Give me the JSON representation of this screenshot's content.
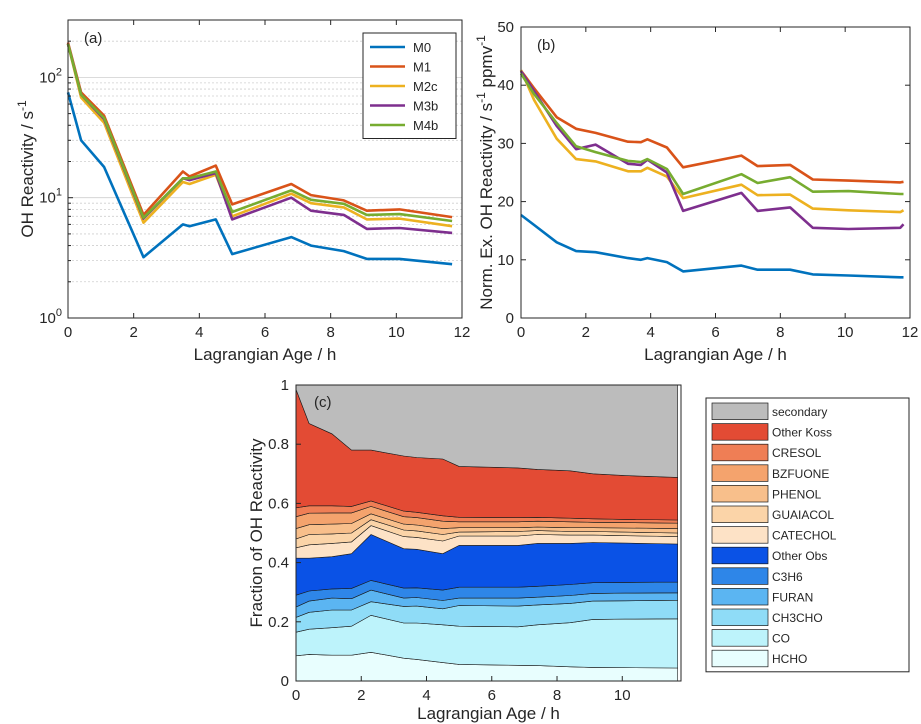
{
  "chart_data": [
    {
      "panel": "(a)",
      "type": "line",
      "xlabel": "Lagrangian Age / h",
      "ylabel": "OH Reactivity / s",
      "ylabel_sup": "-1",
      "xlim": [
        0,
        12
      ],
      "ylim": [
        1,
        300
      ],
      "yscale": "log",
      "grid": "minor-y",
      "legend_placement": "top-right",
      "x_ticks": [
        "0",
        "2",
        "4",
        "6",
        "8",
        "10",
        "12"
      ],
      "y_ticks": [
        {
          "base": "10",
          "exp": "0",
          "v": 1
        },
        {
          "base": "10",
          "exp": "1",
          "v": 10
        },
        {
          "base": "10",
          "exp": "2",
          "v": 100
        }
      ],
      "series": [
        {
          "name": "M0",
          "color": "#0072BD",
          "x": [
            0,
            0.4,
            1.1,
            2.3,
            3.5,
            3.7,
            4.5,
            5,
            6.8,
            7.4,
            8.4,
            9.1,
            10.1,
            11.7
          ],
          "y": [
            75,
            30,
            18,
            3.2,
            6.0,
            5.8,
            6.6,
            3.4,
            4.7,
            4.0,
            3.6,
            3.1,
            3.1,
            2.8
          ]
        },
        {
          "name": "M1",
          "color": "#D95319",
          "x": [
            0,
            0.4,
            1.1,
            2.3,
            3.5,
            3.7,
            4.5,
            5,
            6.8,
            7.4,
            8.4,
            9.1,
            10.1,
            11.7
          ],
          "y": [
            195,
            75,
            48,
            7.2,
            16.5,
            15,
            18.5,
            8.8,
            13,
            10.5,
            9.5,
            7.8,
            8.0,
            6.9
          ]
        },
        {
          "name": "M2c",
          "color": "#EDB120",
          "x": [
            0,
            0.4,
            1.1,
            2.3,
            3.5,
            3.7,
            4.5,
            5,
            6.8,
            7.4,
            8.4,
            9.1,
            10.1,
            11.7
          ],
          "y": [
            190,
            68,
            42,
            6.2,
            13.5,
            13,
            15.5,
            7.0,
            10.8,
            9.0,
            8.3,
            6.6,
            6.7,
            5.8
          ]
        },
        {
          "name": "M3b",
          "color": "#7E2F8E",
          "x": [
            0,
            0.4,
            1.1,
            2.3,
            3.5,
            3.7,
            4.5,
            5,
            6.8,
            7.4,
            8.4,
            9.1,
            10.1,
            11.7
          ],
          "y": [
            190,
            72,
            45,
            6.7,
            14.5,
            14,
            16.0,
            6.6,
            10.0,
            7.8,
            7.2,
            5.5,
            5.6,
            5.1
          ]
        },
        {
          "name": "M4b",
          "color": "#77AC30",
          "x": [
            0,
            0.4,
            1.1,
            2.3,
            3.5,
            3.7,
            4.5,
            5,
            6.8,
            7.4,
            8.4,
            9.1,
            10.1,
            11.7
          ],
          "y": [
            190,
            72,
            46,
            6.8,
            14.5,
            14.5,
            16.5,
            7.6,
            11.5,
            9.6,
            8.9,
            7.2,
            7.3,
            6.4
          ]
        }
      ]
    },
    {
      "panel": "(b)",
      "type": "line",
      "xlabel": "Lagrangian Age / h",
      "ylabel_main": "Norm. Ex. OH Reactivity / s",
      "ylabel_sup1": "-1",
      "ylabel_mid": " ppmv",
      "ylabel_sup2": "-1",
      "xlim": [
        0,
        12
      ],
      "ylim": [
        0,
        50
      ],
      "x_ticks": [
        "0",
        "2",
        "4",
        "6",
        "8",
        "10",
        "12"
      ],
      "y_ticks": [
        "0",
        "10",
        "20",
        "30",
        "40",
        "50"
      ],
      "series": [
        {
          "name": "M0",
          "color": "#0072BD",
          "x": [
            0,
            0.4,
            1.1,
            1.7,
            2.3,
            3.3,
            3.7,
            3.9,
            4.5,
            5,
            6.8,
            7.3,
            8.3,
            9.0,
            10.1,
            11.7,
            11.8
          ],
          "y": [
            17.7,
            16.0,
            13.0,
            11.5,
            11.3,
            10.3,
            10.0,
            10.3,
            9.6,
            8.0,
            9.0,
            8.3,
            8.3,
            7.5,
            7.3,
            7.0,
            7.0
          ]
        },
        {
          "name": "M1",
          "color": "#D95319",
          "x": [
            0,
            0.4,
            1.1,
            1.7,
            2.3,
            3.3,
            3.7,
            3.9,
            4.5,
            5,
            6.8,
            7.3,
            8.3,
            9.0,
            10.1,
            11.7,
            11.8
          ],
          "y": [
            42.5,
            39.5,
            34.5,
            32.5,
            31.8,
            30.3,
            30.2,
            30.7,
            29.3,
            25.9,
            27.9,
            26.1,
            26.3,
            23.8,
            23.6,
            23.3,
            23.4
          ]
        },
        {
          "name": "M2c",
          "color": "#EDB120",
          "x": [
            0,
            0.4,
            1.1,
            1.7,
            2.3,
            3.3,
            3.7,
            3.9,
            4.5,
            5,
            6.8,
            7.3,
            8.3,
            9.0,
            10.1,
            11.7,
            11.8
          ],
          "y": [
            42.6,
            37.5,
            30.8,
            27.3,
            26.9,
            25.2,
            25.2,
            25.8,
            24.3,
            20.6,
            22.9,
            21.1,
            21.2,
            18.8,
            18.5,
            18.2,
            18.5
          ]
        },
        {
          "name": "M3b",
          "color": "#7E2F8E",
          "x": [
            0,
            0.4,
            1.1,
            1.7,
            2.3,
            3.3,
            3.7,
            3.9,
            4.5,
            5,
            6.8,
            7.3,
            8.3,
            9.0,
            10.1,
            11.7,
            11.8
          ],
          "y": [
            42.4,
            39.0,
            33.0,
            29.0,
            29.8,
            26.5,
            26.3,
            27.2,
            25.0,
            18.4,
            21.5,
            18.4,
            19.0,
            15.5,
            15.3,
            15.5,
            16.1
          ]
        },
        {
          "name": "M4b",
          "color": "#77AC30",
          "x": [
            0,
            0.4,
            1.1,
            1.7,
            2.3,
            3.3,
            3.7,
            3.9,
            4.5,
            5,
            6.8,
            7.3,
            8.3,
            9.0,
            10.1,
            11.7,
            11.8
          ],
          "y": [
            42.0,
            38.5,
            33.5,
            29.5,
            28.5,
            27.0,
            26.8,
            27.3,
            25.6,
            21.3,
            24.7,
            23.2,
            24.2,
            21.7,
            21.8,
            21.3,
            21.3
          ]
        }
      ]
    },
    {
      "panel": "(c)",
      "type": "area",
      "xlabel": "Lagrangian Age / h",
      "ylabel": "Fraction of OH Reactivity",
      "xlim": [
        0,
        11.8
      ],
      "ylim": [
        0,
        1
      ],
      "legend_placement": "right",
      "x_ticks": [
        "0",
        "2",
        "4",
        "6",
        "8",
        "10"
      ],
      "y_ticks": [
        "0",
        "0.2",
        "0.4",
        "0.6",
        "0.8",
        "1"
      ],
      "x": [
        0,
        0.4,
        1.1,
        1.7,
        2.3,
        3.3,
        3.7,
        4.5,
        5,
        6.8,
        7.4,
        8.4,
        9.1,
        10.1,
        11.7
      ],
      "layers": [
        {
          "name": "HCHO",
          "color": "#E8FEFE",
          "top": [
            0.085,
            0.09,
            0.087,
            0.087,
            0.097,
            0.077,
            0.073,
            0.062,
            0.056,
            0.053,
            0.052,
            0.048,
            0.046,
            0.045,
            0.044
          ]
        },
        {
          "name": "CO",
          "color": "#BDF3FB",
          "top": [
            0.165,
            0.175,
            0.18,
            0.185,
            0.222,
            0.196,
            0.196,
            0.19,
            0.185,
            0.183,
            0.19,
            0.197,
            0.208,
            0.209,
            0.21
          ]
        },
        {
          "name": "CH3CHO",
          "color": "#8FDCF7",
          "top": [
            0.215,
            0.232,
            0.24,
            0.24,
            0.268,
            0.252,
            0.253,
            0.244,
            0.255,
            0.253,
            0.257,
            0.262,
            0.27,
            0.271,
            0.273
          ]
        },
        {
          "name": "FURAN",
          "color": "#5BB5F2",
          "top": [
            0.25,
            0.27,
            0.28,
            0.278,
            0.307,
            0.28,
            0.282,
            0.272,
            0.28,
            0.28,
            0.283,
            0.289,
            0.296,
            0.297,
            0.298
          ]
        },
        {
          "name": "C3H6",
          "color": "#2E86E8",
          "top": [
            0.29,
            0.304,
            0.311,
            0.313,
            0.34,
            0.314,
            0.315,
            0.307,
            0.317,
            0.317,
            0.32,
            0.326,
            0.332,
            0.333,
            0.334
          ]
        },
        {
          "name": "Other Obs",
          "color": "#0A52E6",
          "top": [
            0.415,
            0.415,
            0.42,
            0.43,
            0.495,
            0.447,
            0.445,
            0.43,
            0.458,
            0.458,
            0.465,
            0.465,
            0.468,
            0.466,
            0.463
          ]
        },
        {
          "name": "CATECHOL",
          "color": "#FDE2C6",
          "top": [
            0.45,
            0.46,
            0.465,
            0.47,
            0.525,
            0.488,
            0.485,
            0.473,
            0.49,
            0.49,
            0.495,
            0.493,
            0.493,
            0.491,
            0.488
          ]
        },
        {
          "name": "GUAIACOL",
          "color": "#FBD4A8",
          "top": [
            0.48,
            0.495,
            0.497,
            0.5,
            0.545,
            0.51,
            0.507,
            0.495,
            0.503,
            0.505,
            0.508,
            0.505,
            0.505,
            0.503,
            0.5
          ]
        },
        {
          "name": "PHENOL",
          "color": "#F8BF8B",
          "top": [
            0.515,
            0.528,
            0.53,
            0.532,
            0.565,
            0.53,
            0.527,
            0.515,
            0.518,
            0.518,
            0.52,
            0.518,
            0.518,
            0.517,
            0.515
          ]
        },
        {
          "name": "BZFUONE",
          "color": "#F4A36D",
          "top": [
            0.555,
            0.567,
            0.568,
            0.568,
            0.59,
            0.555,
            0.552,
            0.54,
            0.538,
            0.538,
            0.54,
            0.538,
            0.536,
            0.535,
            0.533
          ]
        },
        {
          "name": "CRESOL",
          "color": "#EF7E55",
          "top": [
            0.585,
            0.592,
            0.592,
            0.59,
            0.608,
            0.574,
            0.57,
            0.558,
            0.553,
            0.552,
            0.553,
            0.55,
            0.548,
            0.546,
            0.544
          ]
        },
        {
          "name": "Other Koss",
          "color": "#E34B34",
          "top": [
            0.985,
            0.87,
            0.835,
            0.78,
            0.78,
            0.76,
            0.755,
            0.75,
            0.725,
            0.72,
            0.715,
            0.71,
            0.7,
            0.694,
            0.688
          ]
        },
        {
          "name": "secondary",
          "color": "#BCBCBC",
          "top": [
            1,
            1,
            1,
            1,
            1,
            1,
            1,
            1,
            1,
            1,
            1,
            1,
            1,
            1,
            1
          ]
        }
      ]
    }
  ]
}
